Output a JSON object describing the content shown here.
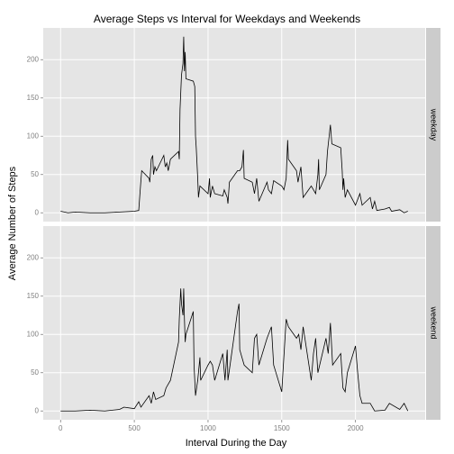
{
  "title": "Average Steps vs Interval for Weekdays and Weekends",
  "x_label": "Interval During the Day",
  "y_label": "Average Number of Steps",
  "chart_data": [
    {
      "type": "line",
      "name": "weekday",
      "color": "#000000",
      "grid": true,
      "xlim": [
        -117.75,
        2472.75
      ],
      "xticks": [
        0,
        500,
        1000,
        1500,
        2000
      ],
      "ylim": [
        -11.5,
        241.5
      ],
      "yticks": [
        0,
        50,
        100,
        150,
        200
      ],
      "x": [
        0,
        50,
        100,
        200,
        300,
        400,
        500,
        530,
        540,
        550,
        600,
        605,
        615,
        625,
        630,
        640,
        650,
        700,
        710,
        720,
        730,
        745,
        800,
        805,
        810,
        820,
        830,
        835,
        840,
        845,
        850,
        900,
        910,
        915,
        920,
        930,
        935,
        945,
        1000,
        1010,
        1015,
        1030,
        1045,
        1100,
        1110,
        1130,
        1135,
        1145,
        1200,
        1215,
        1230,
        1240,
        1245,
        1300,
        1315,
        1330,
        1345,
        1400,
        1410,
        1430,
        1445,
        1500,
        1515,
        1530,
        1540,
        1545,
        1600,
        1610,
        1630,
        1645,
        1700,
        1730,
        1745,
        1750,
        1755,
        1800,
        1810,
        1830,
        1840,
        1900,
        1910,
        1915,
        1920,
        1930,
        1945,
        2000,
        2010,
        2030,
        2045,
        2100,
        2115,
        2130,
        2145,
        2200,
        2230,
        2245,
        2300,
        2330,
        2355
      ],
      "values": [
        2,
        0,
        1,
        0,
        0,
        1,
        2,
        3,
        30,
        55,
        45,
        40,
        70,
        75,
        50,
        60,
        55,
        75,
        60,
        65,
        55,
        70,
        80,
        70,
        135,
        180,
        195,
        230,
        185,
        210,
        175,
        172,
        165,
        100,
        85,
        45,
        20,
        35,
        25,
        45,
        20,
        35,
        25,
        22,
        30,
        20,
        12,
        40,
        55,
        55,
        60,
        82,
        45,
        40,
        25,
        45,
        15,
        40,
        30,
        25,
        42,
        35,
        30,
        45,
        95,
        70,
        55,
        40,
        60,
        20,
        35,
        25,
        50,
        70,
        30,
        50,
        80,
        115,
        90,
        85,
        55,
        30,
        45,
        20,
        30,
        10,
        15,
        25,
        10,
        20,
        5,
        15,
        3,
        5,
        7,
        2,
        4,
        0,
        2
      ]
    },
    {
      "type": "line",
      "name": "weekend",
      "color": "#000000",
      "grid": true,
      "xlim": [
        -117.75,
        2472.75
      ],
      "xticks": [
        0,
        500,
        1000,
        1500,
        2000
      ],
      "ylim": [
        -11.5,
        241.5
      ],
      "yticks": [
        0,
        50,
        100,
        150,
        200
      ],
      "x": [
        0,
        100,
        200,
        300,
        400,
        430,
        500,
        530,
        545,
        600,
        615,
        630,
        645,
        700,
        715,
        730,
        745,
        800,
        805,
        815,
        820,
        830,
        835,
        840,
        845,
        850,
        900,
        905,
        915,
        930,
        945,
        950,
        1000,
        1015,
        1030,
        1045,
        1100,
        1115,
        1130,
        1135,
        1200,
        1210,
        1215,
        1230,
        1245,
        1300,
        1315,
        1330,
        1345,
        1400,
        1430,
        1445,
        1500,
        1530,
        1545,
        1600,
        1615,
        1630,
        1645,
        1700,
        1715,
        1730,
        1745,
        1800,
        1815,
        1830,
        1845,
        1900,
        1915,
        1930,
        1945,
        2000,
        2015,
        2030,
        2045,
        2100,
        2115,
        2130,
        2200,
        2230,
        2300,
        2330,
        2355
      ],
      "values": [
        0,
        0,
        1,
        0,
        2,
        5,
        3,
        12,
        5,
        20,
        10,
        25,
        15,
        20,
        30,
        35,
        40,
        90,
        120,
        160,
        140,
        125,
        160,
        120,
        90,
        100,
        130,
        60,
        20,
        40,
        70,
        40,
        60,
        65,
        60,
        40,
        75,
        40,
        80,
        40,
        130,
        140,
        80,
        70,
        60,
        50,
        95,
        100,
        60,
        95,
        110,
        60,
        25,
        120,
        110,
        95,
        100,
        80,
        110,
        40,
        75,
        95,
        50,
        95,
        75,
        115,
        60,
        75,
        30,
        25,
        50,
        85,
        50,
        20,
        10,
        10,
        5,
        0,
        1,
        10,
        2,
        10,
        0
      ]
    }
  ]
}
